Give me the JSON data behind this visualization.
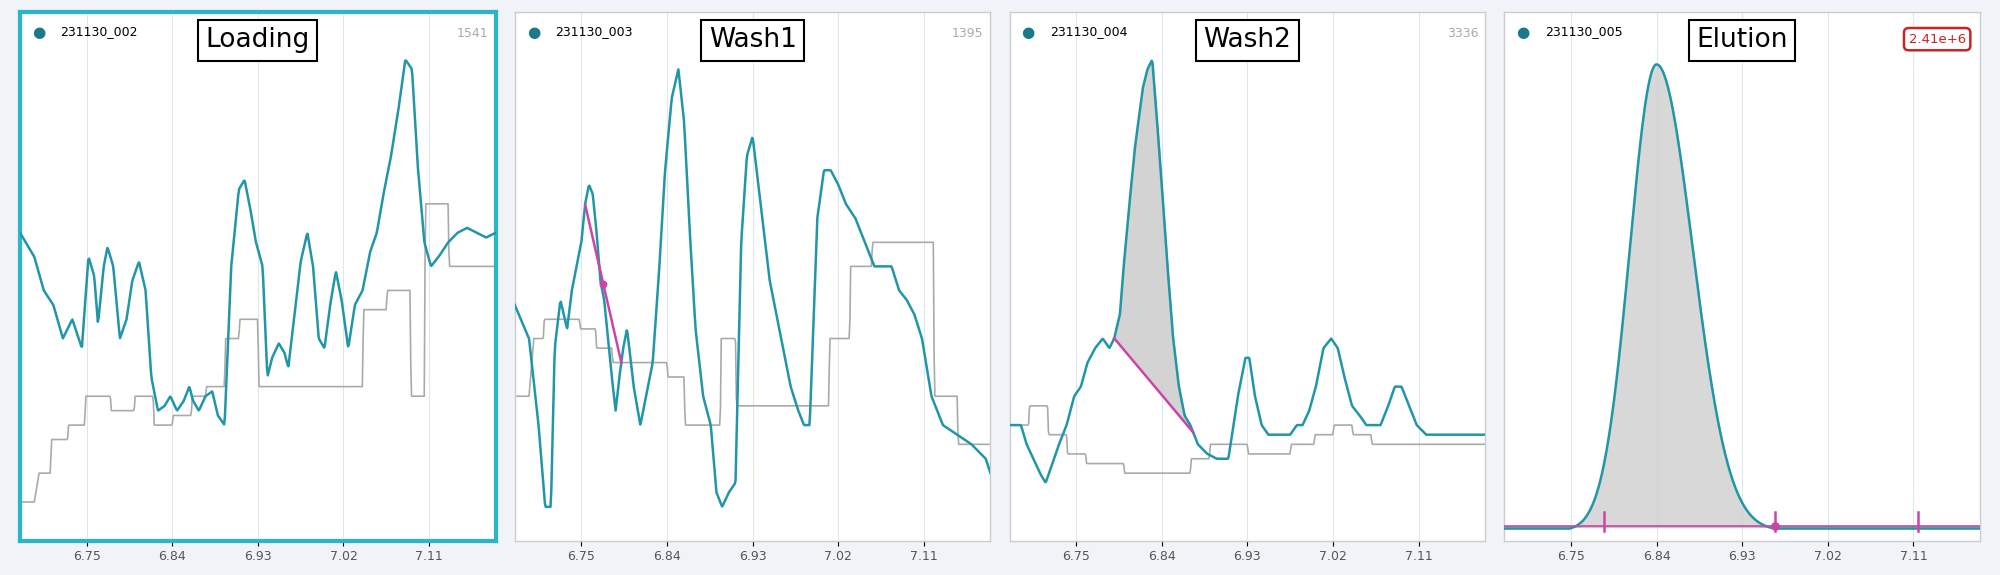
{
  "panels": [
    {
      "id": "231130_002",
      "title": "Loading",
      "y_max_label": "1541",
      "border_color": "#2ab5c8",
      "border_width": 3.0,
      "title_circle_color": "#1a7a8a",
      "has_pink_line": false,
      "has_fill": false,
      "has_peak_fill": false,
      "y_max_label_color": "#aaaaaa",
      "y_max_label_circle": false
    },
    {
      "id": "231130_003",
      "title": "Wash1",
      "y_max_label": "1395",
      "border_color": "#cccccc",
      "border_width": 1.0,
      "title_circle_color": "#1a7a8a",
      "has_pink_line": true,
      "has_fill": false,
      "has_peak_fill": false,
      "y_max_label_color": "#aaaaaa",
      "y_max_label_circle": false
    },
    {
      "id": "231130_004",
      "title": "Wash2",
      "y_max_label": "3336",
      "border_color": "#cccccc",
      "border_width": 1.0,
      "title_circle_color": "#1a7a8a",
      "has_pink_line": true,
      "has_fill": true,
      "has_peak_fill": true,
      "fill_color": "#cccccc",
      "y_max_label_color": "#aaaaaa",
      "y_max_label_circle": false
    },
    {
      "id": "231130_005",
      "title": "Elution",
      "y_max_label": "2.41e+6",
      "border_color": "#cccccc",
      "border_width": 1.0,
      "title_circle_color": "#1a7a8a",
      "has_pink_line": false,
      "has_fill": false,
      "has_peak_fill": true,
      "fill_color": "#cccccc",
      "y_max_label_color": "#cc2222",
      "y_max_label_circle": true,
      "y_max_label_circle_color": "#cc2222",
      "pink_baseline": true,
      "pink_ticks": [
        6.785,
        6.965,
        7.115
      ]
    }
  ],
  "x_ticks": [
    6.75,
    6.84,
    6.93,
    7.02,
    7.11
  ],
  "x_min": 6.68,
  "x_max": 7.18,
  "teal_color": "#2196a8",
  "gray_color": "#aaaaaa",
  "bg_color": "#f0f4f8",
  "grid_color": "#dce8f0",
  "panel_bg": "#ffffff",
  "pink_color": "#cc44aa"
}
